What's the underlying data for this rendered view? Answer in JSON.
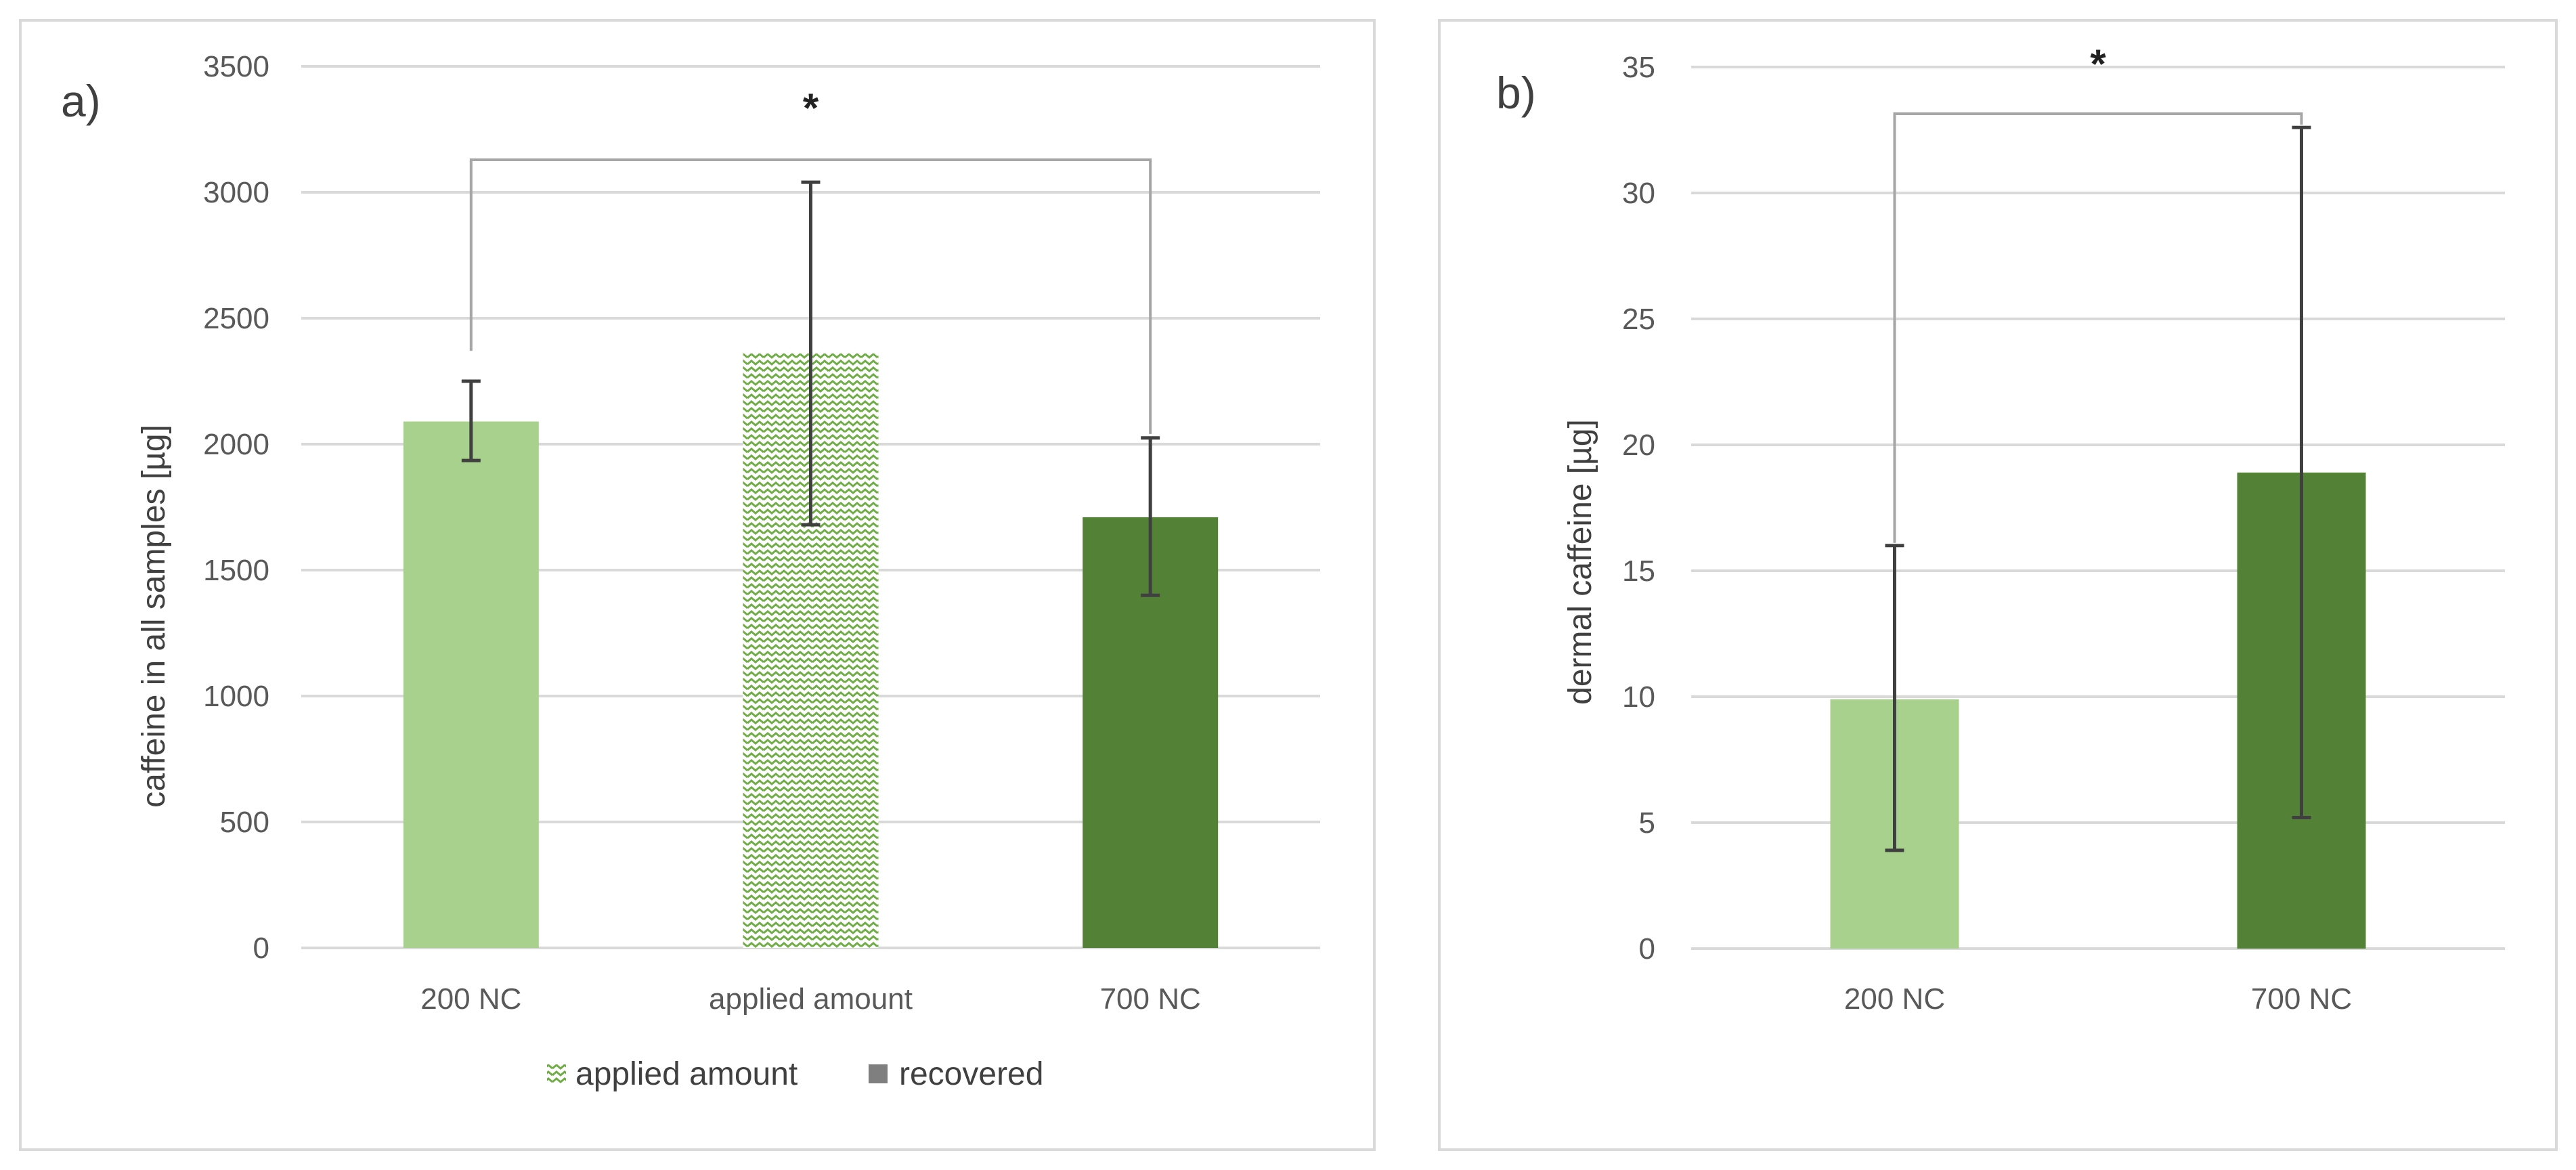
{
  "colors": {
    "light_green": "#a9d18e",
    "dark_green": "#538135",
    "pattern_green": "#70ad47",
    "legend_grey": "#7f7f7f",
    "grid": "#d9d9d9",
    "error_bar": "#404040",
    "bracket": "#a6a6a6"
  },
  "chart_data": [
    {
      "type": "bar",
      "panel_label": "a)",
      "ylabel": "caffeine in all samples  [µg]",
      "xlabel": "",
      "ylim": [
        0,
        3500
      ],
      "yticks": [
        "0",
        "500",
        "1000",
        "1500",
        "2000",
        "2500",
        "3000",
        "3500"
      ],
      "grid": true,
      "categories": [
        "200 NC",
        "applied amount",
        "700 NC"
      ],
      "values": [
        2090,
        2360,
        1710
      ],
      "error_low": [
        1935,
        1680,
        1400
      ],
      "error_high": [
        2250,
        3040,
        2025
      ],
      "bar_styles": [
        "light",
        "pattern",
        "dark"
      ],
      "significance": {
        "label": "*",
        "from": "200 NC",
        "to": "700 NC"
      },
      "legend": [
        {
          "label": "applied amount",
          "style": "pattern"
        },
        {
          "label": "recovered",
          "style": "solid"
        }
      ],
      "legend_position": "bottom"
    },
    {
      "type": "bar",
      "panel_label": "b)",
      "ylabel": "dermal caffeine [µg]",
      "xlabel": "",
      "ylim": [
        0,
        35
      ],
      "yticks": [
        "0",
        "5",
        "10",
        "15",
        "20",
        "25",
        "30",
        "35"
      ],
      "grid": true,
      "categories": [
        "200 NC",
        "700 NC"
      ],
      "values": [
        9.9,
        18.9
      ],
      "error_low": [
        3.9,
        5.2
      ],
      "error_high": [
        16.0,
        32.6
      ],
      "bar_styles": [
        "light",
        "dark"
      ],
      "significance": {
        "label": "*",
        "from": "200 NC",
        "to": "700 NC"
      }
    }
  ]
}
